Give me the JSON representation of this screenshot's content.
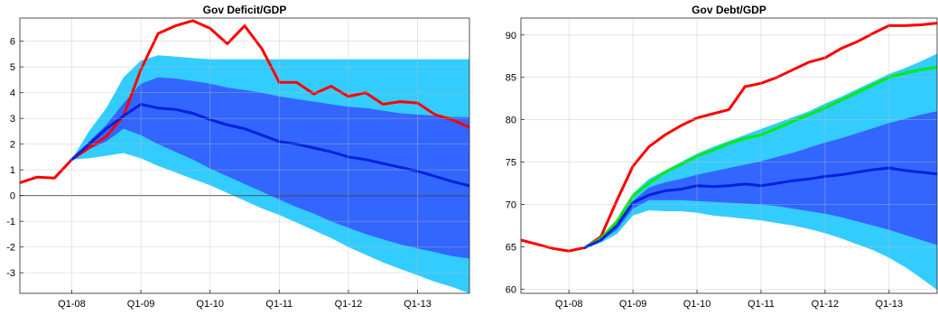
{
  "chart_data": [
    {
      "type": "line",
      "title": "Gov Deficit/GDP",
      "xlabel": "",
      "ylabel": "",
      "x_ticks": [
        "Q1-08",
        "Q1-09",
        "Q1-10",
        "Q1-11",
        "Q1-12",
        "Q1-13"
      ],
      "y_ticks": [
        -3,
        -2,
        -1,
        0,
        1,
        2,
        3,
        4,
        5,
        6
      ],
      "xlim": [
        2007.25,
        2013.75
      ],
      "ylim": [
        -3.8,
        6.9
      ],
      "grid": true,
      "zero_line": true,
      "x": [
        2007.25,
        2007.5,
        2007.75,
        2008.0,
        2008.25,
        2008.5,
        2008.75,
        2009.0,
        2009.25,
        2009.5,
        2009.75,
        2010.0,
        2010.25,
        2010.5,
        2010.75,
        2011.0,
        2011.25,
        2011.5,
        2011.75,
        2012.0,
        2012.25,
        2012.5,
        2012.75,
        2013.0,
        2013.25,
        2013.5,
        2013.75
      ],
      "bands": [
        {
          "name": "outer",
          "color": "#33ccff",
          "lower": [
            null,
            null,
            null,
            1.4,
            1.45,
            1.55,
            1.65,
            1.45,
            1.15,
            0.9,
            0.65,
            0.4,
            0.1,
            -0.2,
            -0.5,
            -0.75,
            -1.05,
            -1.35,
            -1.65,
            -2.0,
            -2.3,
            -2.6,
            -2.85,
            -3.1,
            -3.35,
            -3.55,
            -3.8
          ],
          "upper": [
            null,
            null,
            null,
            1.4,
            2.5,
            3.4,
            4.6,
            5.25,
            5.45,
            5.4,
            5.35,
            5.3,
            5.3,
            5.3,
            5.3,
            5.3,
            5.3,
            5.3,
            5.3,
            5.3,
            5.3,
            5.3,
            5.3,
            5.3,
            5.3,
            5.3,
            5.3
          ]
        },
        {
          "name": "inner",
          "color": "#3366ff",
          "lower": [
            null,
            null,
            null,
            1.4,
            1.8,
            2.1,
            2.6,
            2.35,
            2.0,
            1.7,
            1.4,
            1.05,
            0.75,
            0.45,
            0.15,
            -0.15,
            -0.45,
            -0.7,
            -1.0,
            -1.25,
            -1.5,
            -1.7,
            -1.9,
            -2.05,
            -2.2,
            -2.35,
            -2.45
          ],
          "upper": [
            null,
            null,
            null,
            1.4,
            2.1,
            2.75,
            3.6,
            4.35,
            4.6,
            4.55,
            4.45,
            4.35,
            4.2,
            4.1,
            4.0,
            3.85,
            3.75,
            3.65,
            3.55,
            3.45,
            3.4,
            3.3,
            3.2,
            3.15,
            3.1,
            3.05,
            3.05
          ]
        }
      ],
      "series": [
        {
          "color": "#ff0000",
          "values": [
            0.5,
            0.72,
            0.68,
            1.4,
            1.85,
            2.3,
            3.1,
            4.9,
            6.3,
            6.6,
            6.8,
            6.5,
            5.9,
            6.6,
            5.7,
            4.4,
            4.4,
            3.95,
            4.25,
            3.85,
            4.0,
            3.55,
            3.65,
            3.6,
            3.15,
            2.95,
            2.65
          ]
        },
        {
          "color": "#0022dd",
          "values": [
            null,
            null,
            null,
            1.4,
            2.0,
            2.6,
            3.1,
            3.55,
            3.4,
            3.35,
            3.2,
            2.95,
            2.75,
            2.6,
            2.35,
            2.1,
            2.0,
            1.85,
            1.7,
            1.5,
            1.4,
            1.25,
            1.1,
            0.95,
            0.75,
            0.55,
            0.38
          ]
        }
      ]
    },
    {
      "type": "line",
      "title": "Gov Debt/GDP",
      "xlabel": "",
      "ylabel": "",
      "x_ticks": [
        "Q1-08",
        "Q1-09",
        "Q1-10",
        "Q1-11",
        "Q1-12",
        "Q1-13"
      ],
      "y_ticks": [
        60,
        65,
        70,
        75,
        80,
        85,
        90
      ],
      "xlim": [
        2007.25,
        2013.75
      ],
      "ylim": [
        59.5,
        92.0
      ],
      "grid": true,
      "zero_line": false,
      "x": [
        2007.25,
        2007.5,
        2007.75,
        2008.0,
        2008.25,
        2008.5,
        2008.75,
        2009.0,
        2009.25,
        2009.5,
        2009.75,
        2010.0,
        2010.25,
        2010.5,
        2010.75,
        2011.0,
        2011.25,
        2011.5,
        2011.75,
        2012.0,
        2012.25,
        2012.5,
        2012.75,
        2013.0,
        2013.25,
        2013.5,
        2013.75
      ],
      "bands": [
        {
          "name": "outer",
          "color": "#33ccff",
          "lower": [
            null,
            null,
            null,
            null,
            64.8,
            65.5,
            66.5,
            68.7,
            69.3,
            69.2,
            69.2,
            69.0,
            68.7,
            68.5,
            68.3,
            68.1,
            67.8,
            67.5,
            67.1,
            66.6,
            66.0,
            65.3,
            64.6,
            63.7,
            62.6,
            61.3,
            59.9
          ],
          "upper": [
            null,
            null,
            null,
            null,
            65.1,
            66.2,
            68.0,
            71.3,
            73.0,
            74.0,
            75.0,
            76.0,
            76.8,
            77.5,
            78.2,
            78.9,
            79.6,
            80.3,
            81.0,
            81.9,
            82.7,
            83.6,
            84.5,
            85.4,
            86.1,
            86.9,
            87.8
          ]
        },
        {
          "name": "inner",
          "color": "#3366ff",
          "lower": [
            null,
            null,
            null,
            null,
            64.9,
            65.7,
            67.0,
            69.5,
            70.5,
            70.5,
            70.5,
            70.4,
            70.3,
            70.2,
            70.1,
            70.0,
            69.8,
            69.5,
            69.2,
            68.9,
            68.5,
            68.0,
            67.5,
            67.0,
            66.4,
            65.8,
            65.2
          ],
          "upper": [
            null,
            null,
            null,
            null,
            65.0,
            65.9,
            67.4,
            70.4,
            72.0,
            72.6,
            73.0,
            73.5,
            73.9,
            74.3,
            74.7,
            75.1,
            75.6,
            76.1,
            76.7,
            77.3,
            77.8,
            78.4,
            79.0,
            79.6,
            80.1,
            80.6,
            81.0
          ]
        }
      ],
      "series": [
        {
          "color": "#ff0000",
          "values": [
            65.8,
            65.3,
            64.8,
            64.5,
            64.9,
            66.2,
            70.5,
            74.5,
            76.8,
            78.2,
            79.3,
            80.2,
            80.7,
            81.2,
            83.9,
            84.3,
            85.0,
            85.9,
            86.8,
            87.3,
            88.4,
            89.2,
            90.2,
            91.1,
            91.1,
            91.2,
            91.4
          ]
        },
        {
          "color": "#00ee00",
          "values": [
            null,
            null,
            null,
            null,
            64.9,
            66.0,
            68.0,
            71.0,
            72.5,
            73.8,
            74.7,
            75.7,
            76.4,
            77.2,
            77.8,
            78.2,
            79.0,
            79.8,
            80.6,
            81.4,
            82.3,
            83.2,
            84.1,
            85.0,
            85.5,
            85.9,
            86.2
          ]
        },
        {
          "color": "#0022dd",
          "values": [
            null,
            null,
            null,
            null,
            64.9,
            65.8,
            67.5,
            70.2,
            71.1,
            71.6,
            71.8,
            72.2,
            72.1,
            72.2,
            72.4,
            72.2,
            72.5,
            72.8,
            73.0,
            73.3,
            73.5,
            73.8,
            74.1,
            74.3,
            74.0,
            73.8,
            73.6
          ]
        }
      ]
    }
  ]
}
